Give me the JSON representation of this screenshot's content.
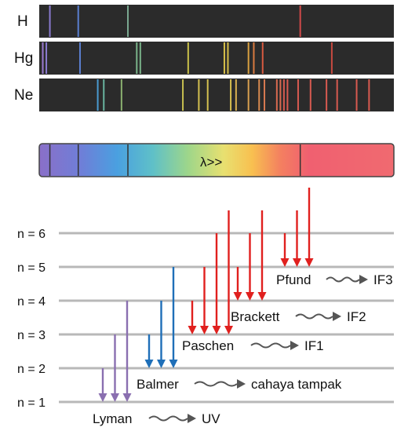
{
  "spectra": [
    {
      "element": "H",
      "lines": [
        {
          "c": "#8a7bd0",
          "x": 0.03
        },
        {
          "c": "#5a7fd0",
          "x": 0.11
        },
        {
          "c": "#7aa890",
          "x": 0.25
        },
        {
          "c": "#d24a4a",
          "x": 0.736
        }
      ]
    },
    {
      "element": "Hg",
      "lines": [
        {
          "c": "#9b7ad0",
          "x": 0.01
        },
        {
          "c": "#8a7bd0",
          "x": 0.02
        },
        {
          "c": "#5a7fd0",
          "x": 0.115
        },
        {
          "c": "#7ab48a",
          "x": 0.275
        },
        {
          "c": "#7ab48a",
          "x": 0.285
        },
        {
          "c": "#c9c04a",
          "x": 0.42
        },
        {
          "c": "#d8c04a",
          "x": 0.522
        },
        {
          "c": "#d8c04a",
          "x": 0.532
        },
        {
          "c": "#d8a040",
          "x": 0.59
        },
        {
          "c": "#d87a40",
          "x": 0.605
        },
        {
          "c": "#d85a40",
          "x": 0.63
        },
        {
          "c": "#c84a40",
          "x": 0.825
        }
      ]
    },
    {
      "element": "Ne",
      "lines": [
        {
          "c": "#4a9ad0",
          "x": 0.165
        },
        {
          "c": "#6ab4a0",
          "x": 0.182
        },
        {
          "c": "#8ab070",
          "x": 0.232
        },
        {
          "c": "#c8c050",
          "x": 0.405
        },
        {
          "c": "#d4c050",
          "x": 0.45
        },
        {
          "c": "#d4c050",
          "x": 0.475
        },
        {
          "c": "#d8c050",
          "x": 0.54
        },
        {
          "c": "#d8b050",
          "x": 0.555
        },
        {
          "c": "#d8a050",
          "x": 0.59
        },
        {
          "c": "#d88a50",
          "x": 0.62
        },
        {
          "c": "#d87a50",
          "x": 0.635
        },
        {
          "c": "#d86a50",
          "x": 0.67
        },
        {
          "c": "#d86a50",
          "x": 0.68
        },
        {
          "c": "#d85a50",
          "x": 0.69
        },
        {
          "c": "#d85a50",
          "x": 0.7
        },
        {
          "c": "#d85a50",
          "x": 0.73
        },
        {
          "c": "#d85a50",
          "x": 0.765
        },
        {
          "c": "#d85a50",
          "x": 0.81
        },
        {
          "c": "#d85a50",
          "x": 0.84
        },
        {
          "c": "#d85a50",
          "x": 0.895
        },
        {
          "c": "#d85a50",
          "x": 0.93
        }
      ]
    }
  ],
  "spectrum_bar": {
    "label": "λ>>",
    "markers": [
      0.03,
      0.11,
      0.25,
      0.736
    ]
  },
  "levels": [
    "n = 1",
    "n = 2",
    "n = 3",
    "n = 4",
    "n = 5",
    "n = 6"
  ],
  "series": [
    {
      "name": "Lyman",
      "result": "UV",
      "color": "#8a6fb0",
      "to": 1,
      "froms": [
        2,
        3,
        4
      ]
    },
    {
      "name": "Balmer",
      "result": "cahaya tampak",
      "color": "#1f6fb8",
      "to": 2,
      "froms": [
        3,
        4,
        5
      ]
    },
    {
      "name": "Paschen",
      "result": "IF1",
      "color": "#e0201e",
      "to": 3,
      "froms": [
        4,
        5,
        6,
        7
      ]
    },
    {
      "name": "Brackett",
      "result": "IF2",
      "color": "#e0201e",
      "to": 4,
      "froms": [
        5,
        6,
        7
      ]
    },
    {
      "name": "Pfund",
      "result": "IF3",
      "color": "#e0201e",
      "to": 5,
      "froms": [
        6,
        7,
        8
      ]
    }
  ],
  "colors": {
    "level_line": "#b8b8b8",
    "spectrum_bg": "#2b2b2b",
    "squiggle": "#555555"
  }
}
